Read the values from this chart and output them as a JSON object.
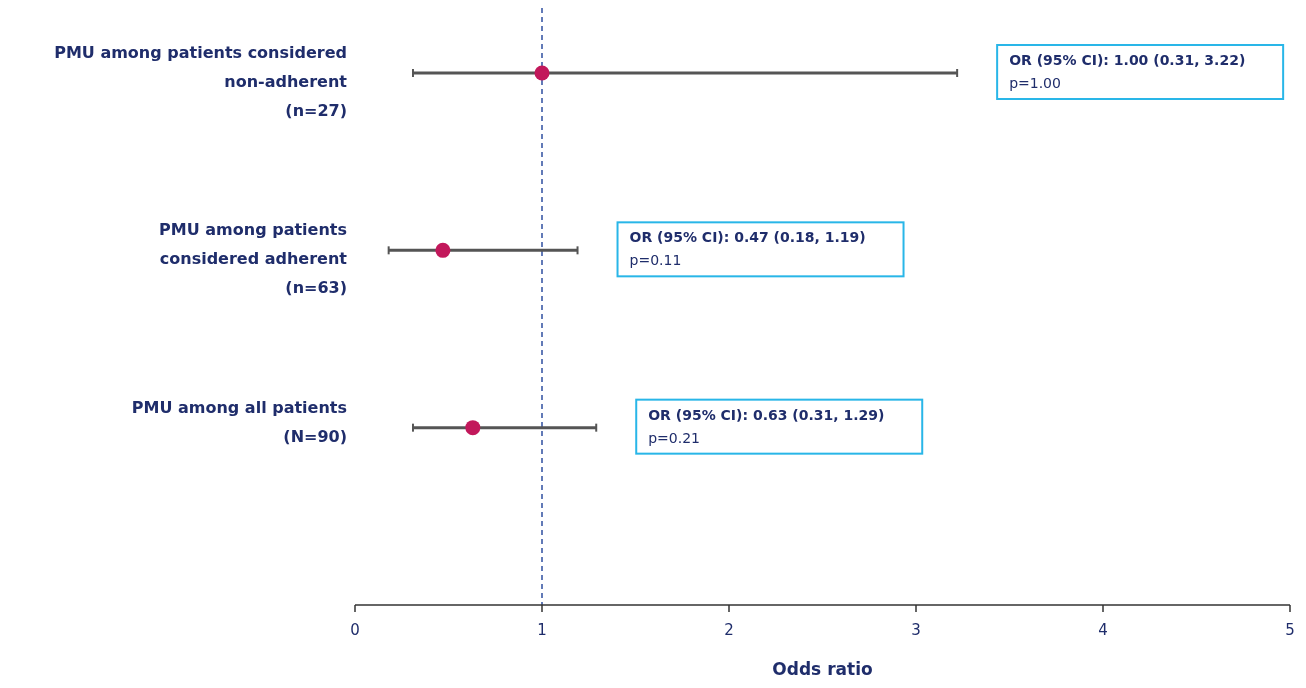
{
  "chart_data": {
    "type": "scatter",
    "orientation": "horizontal",
    "marker": "circle",
    "color": "#c2185b",
    "categories": [
      "PMU among patients considered\nnon-adherent\n(n=27)",
      "PMU among patients\nconsidered adherent\n(n=63)",
      "PMU among all patients\n(N=90)"
    ],
    "values": [
      1.0,
      0.47,
      0.63
    ],
    "errors": [
      [
        0.31,
        3.22
      ],
      [
        0.18,
        1.19
      ],
      [
        0.31,
        1.29
      ]
    ],
    "xlim": [
      0,
      5
    ],
    "xticks": [
      0,
      1,
      2,
      3,
      4,
      5
    ],
    "xlabel": "Odds ratio",
    "ref_lines": [
      {
        "axis": "x",
        "value": 1,
        "color": "#2f4fa0",
        "line_style": "dashed"
      }
    ],
    "annotations": [
      "OR (95% CI): 1.00 (0.31, 3.22)\np=1.00",
      "OR (95% CI): 0.47 (0.18, 1.19)\np=0.11",
      "OR (95% CI): 0.63 (0.31, 1.29)\np=0.21"
    ]
  }
}
